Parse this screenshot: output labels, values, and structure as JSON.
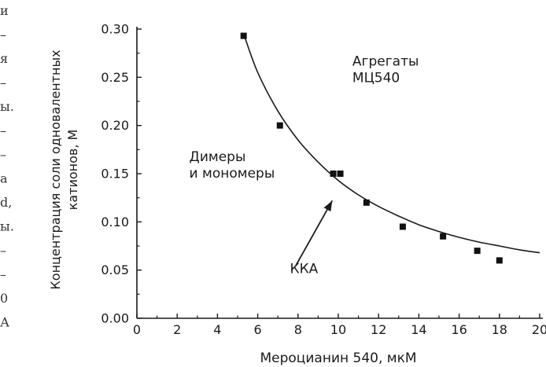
{
  "left_margin_text": [
    "и",
    "–",
    "я",
    "–",
    "ы.",
    "–",
    "–",
    "а",
    "d,",
    "ы.",
    "–",
    "–",
    "0",
    "А"
  ],
  "chart_data": {
    "type": "scatter",
    "xlabel": "Мероцианин 540, мкМ",
    "ylabel_line1": "Концентрация соли одновалентных",
    "ylabel_line2": "катионов, М",
    "xlim": [
      0,
      20
    ],
    "ylim": [
      0,
      0.3
    ],
    "x_ticks": [
      "0",
      "2",
      "4",
      "6",
      "8",
      "10",
      "12",
      "14",
      "16",
      "18",
      "20"
    ],
    "y_ticks": [
      "0.00",
      "0.05",
      "0.10",
      "0.15",
      "0.20",
      "0.25",
      "0.30"
    ],
    "grid": false,
    "points": [
      {
        "x": 5.3,
        "y": 0.293
      },
      {
        "x": 7.1,
        "y": 0.2
      },
      {
        "x": 9.75,
        "y": 0.15
      },
      {
        "x": 10.1,
        "y": 0.15
      },
      {
        "x": 11.4,
        "y": 0.12
      },
      {
        "x": 13.2,
        "y": 0.095
      },
      {
        "x": 15.2,
        "y": 0.085
      },
      {
        "x": 16.9,
        "y": 0.07
      },
      {
        "x": 18.0,
        "y": 0.06
      }
    ],
    "fit_curve": [
      {
        "x": 5.3,
        "y": 0.295
      },
      {
        "x": 6.0,
        "y": 0.255
      },
      {
        "x": 7.0,
        "y": 0.215
      },
      {
        "x": 8.0,
        "y": 0.185
      },
      {
        "x": 9.0,
        "y": 0.162
      },
      {
        "x": 10.0,
        "y": 0.143
      },
      {
        "x": 11.0,
        "y": 0.128
      },
      {
        "x": 12.0,
        "y": 0.116
      },
      {
        "x": 13.0,
        "y": 0.106
      },
      {
        "x": 14.0,
        "y": 0.097
      },
      {
        "x": 15.0,
        "y": 0.09
      },
      {
        "x": 16.0,
        "y": 0.084
      },
      {
        "x": 17.0,
        "y": 0.079
      },
      {
        "x": 18.0,
        "y": 0.075
      },
      {
        "x": 19.0,
        "y": 0.071
      },
      {
        "x": 20.0,
        "y": 0.068
      }
    ],
    "annotations": [
      {
        "name": "aggregates",
        "lines": [
          "Агрегаты",
          "МЦ540"
        ],
        "x": 10.7,
        "y": 0.262
      },
      {
        "name": "dimers",
        "lines": [
          "Димеры",
          "и мономеры"
        ],
        "x": 2.6,
        "y": 0.163
      },
      {
        "name": "kka",
        "lines": [
          "ККА"
        ],
        "x": 7.6,
        "y": 0.047
      }
    ],
    "arrow": {
      "from": {
        "x": 7.9,
        "y": 0.055
      },
      "to": {
        "x": 9.7,
        "y": 0.122
      }
    },
    "colors": {
      "axis": "#1a1a1a",
      "marker": "#111111",
      "curve": "#1a1a1a"
    }
  }
}
